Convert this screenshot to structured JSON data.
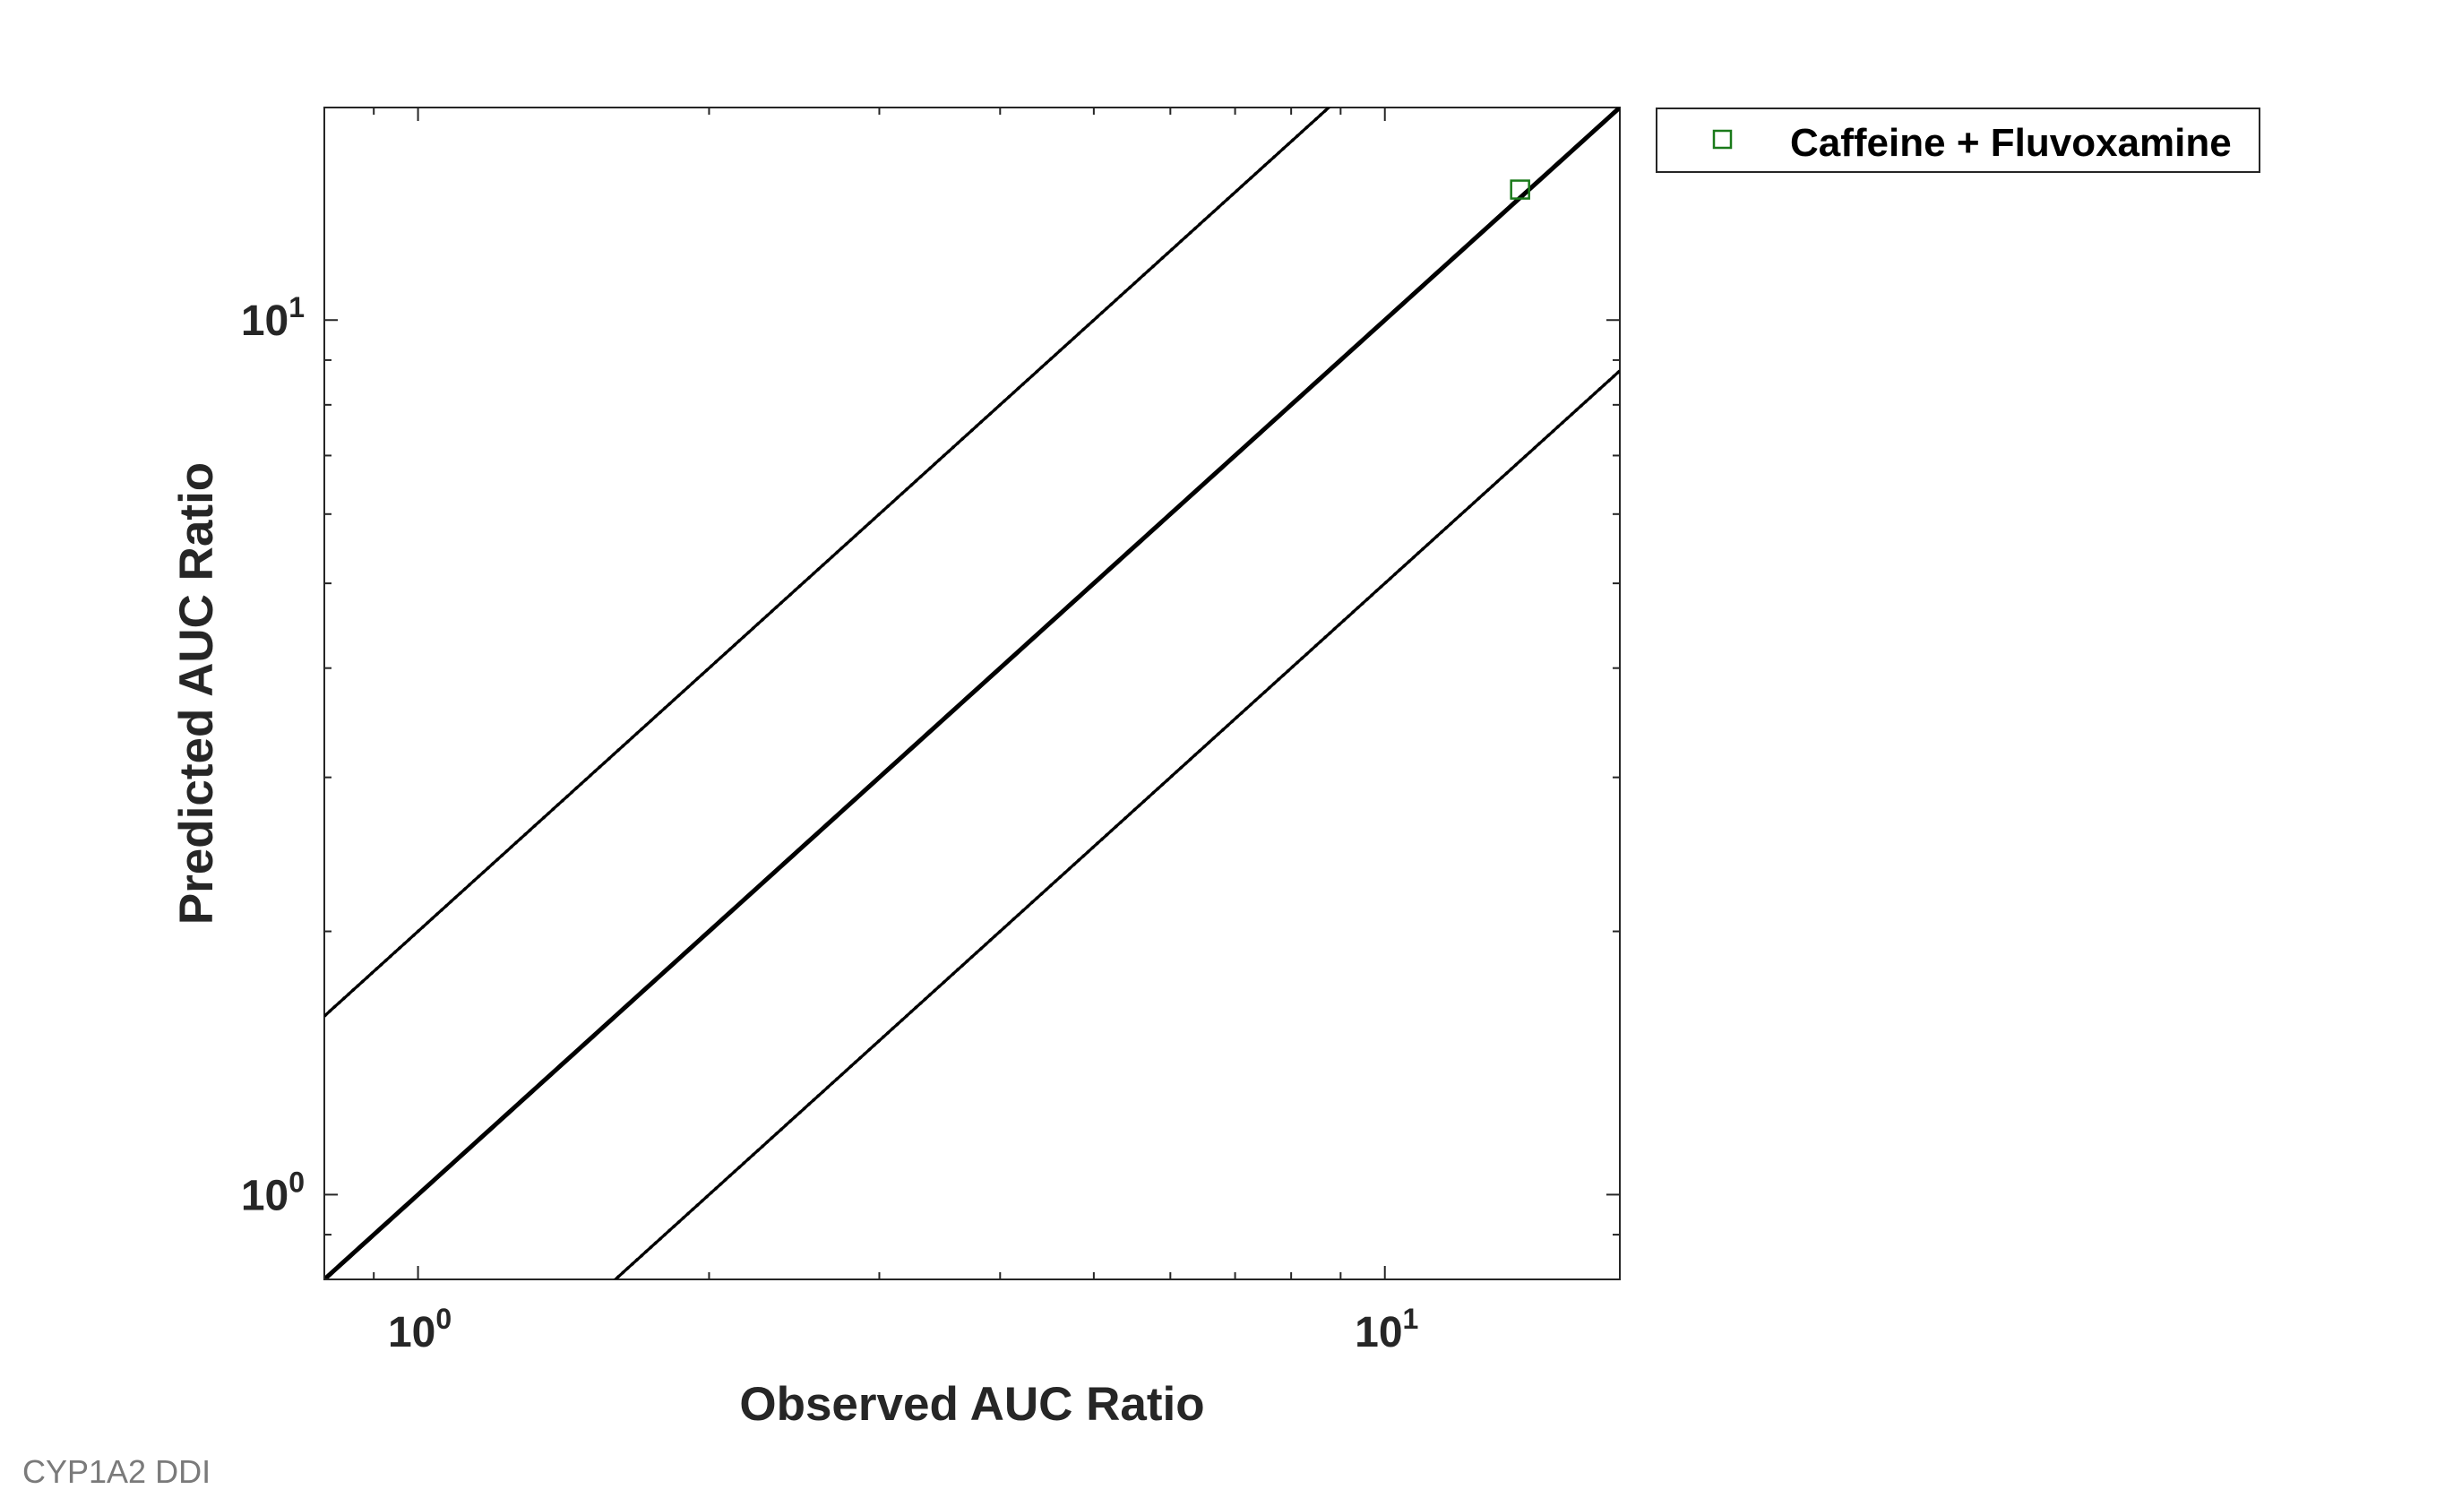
{
  "chart_data": {
    "type": "scatter",
    "xlabel": "Observed AUC Ratio",
    "ylabel": "Predicted AUC Ratio",
    "xscale": "log",
    "yscale": "log",
    "xlim": [
      0.8,
      17.5
    ],
    "ylim": [
      0.8,
      17.5
    ],
    "grid": false,
    "legend_position": "outside-top-right",
    "xticks": [
      {
        "value": 1,
        "base": "10",
        "exp": "0"
      },
      {
        "value": 10,
        "base": "10",
        "exp": "1"
      }
    ],
    "yticks": [
      {
        "value": 1,
        "base": "10",
        "exp": "0"
      },
      {
        "value": 10,
        "base": "10",
        "exp": "1"
      }
    ],
    "series": [
      {
        "name": "Caffeine + Fluvoxamine",
        "marker": "square",
        "color": "#1a7a1a",
        "points": [
          {
            "x": 13.8,
            "y": 14.1
          }
        ]
      }
    ],
    "reference_lines": [
      {
        "kind": "unity",
        "style": "solid-thick",
        "formula": "y = x"
      },
      {
        "kind": "twofold-upper",
        "style": "dotted",
        "formula": "y = 2x"
      },
      {
        "kind": "twofold-lower",
        "style": "dotted",
        "formula": "y = x/2"
      },
      {
        "kind": "guest-upper",
        "style": "solid",
        "delta": 2
      },
      {
        "kind": "guest-lower",
        "style": "solid",
        "delta": 2
      }
    ]
  },
  "footer": "CYP1A2 DDI"
}
